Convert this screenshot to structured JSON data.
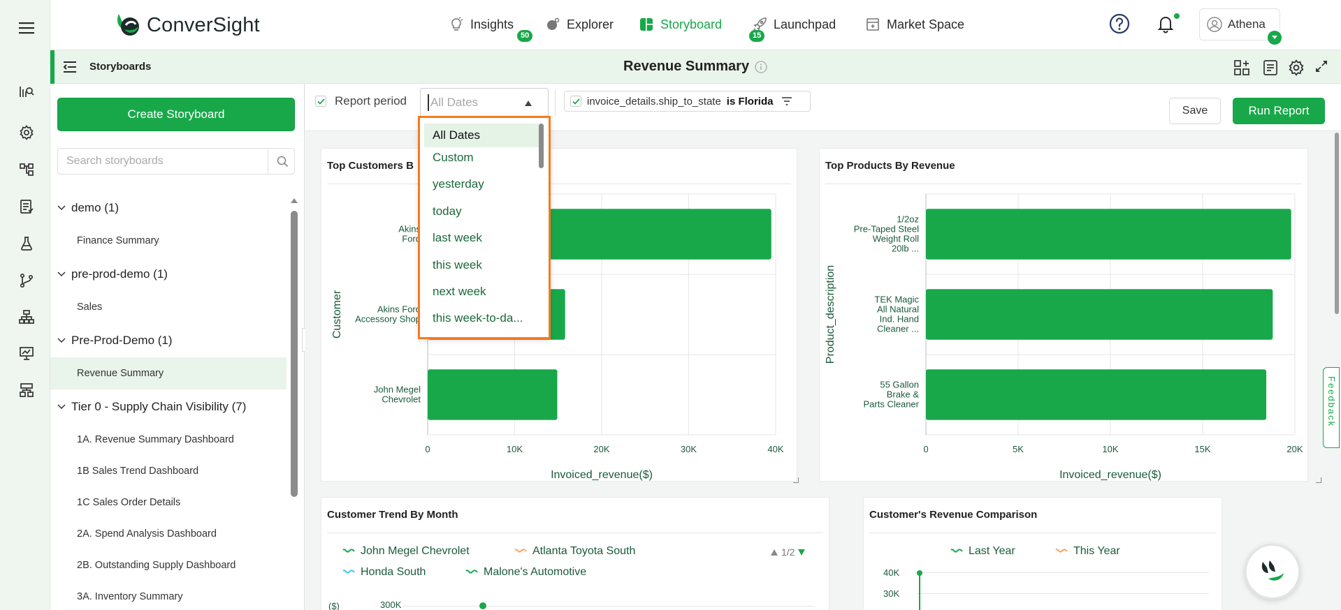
{
  "app": {
    "logo_text": "ConverSight",
    "brand_color": "#18a84a",
    "highlight_color": "#f47b20"
  },
  "nav": {
    "items": [
      {
        "label": "Insights",
        "badge": "50",
        "icon": "insights-icon"
      },
      {
        "label": "Explorer",
        "icon": "explorer-icon"
      },
      {
        "label": "Storyboard",
        "badge": "15",
        "icon": "storyboard-icon",
        "active": true
      },
      {
        "label": "Launchpad",
        "icon": "launchpad-icon"
      },
      {
        "label": "Market Space",
        "icon": "market-space-icon"
      }
    ],
    "user_name": "Athena"
  },
  "subheader": {
    "section_label": "Storyboards",
    "page_title": "Revenue Summary"
  },
  "sidebar": {
    "create_button": "Create Storyboard",
    "search_placeholder": "Search storyboards",
    "groups": [
      {
        "label": "demo (1)",
        "items": [
          "Finance Summary"
        ]
      },
      {
        "label": "pre-prod-demo (1)",
        "items": [
          "Sales"
        ]
      },
      {
        "label": "Pre-Prod-Demo (1)",
        "items": [
          "Revenue Summary"
        ]
      },
      {
        "label": "Tier 0 - Supply Chain Visibility (7)",
        "items": [
          "1A. Revenue Summary Dashboard",
          "1B Sales Trend Dashboard",
          "1C Sales Order Details",
          "2A. Spend Analysis Dashboard",
          "2B. Outstanding Supply Dashboard",
          "3A. Inventory Summary"
        ]
      }
    ],
    "selected_item": "Revenue Summary"
  },
  "filters": {
    "report_period_label": "Report period",
    "period_placeholder": "All Dates",
    "filter_field": "invoice_details.ship_to_state",
    "filter_value": "is Florida",
    "save_label": "Save",
    "run_label": "Run Report"
  },
  "dropdown": {
    "options": [
      "All Dates",
      "Custom",
      "yesterday",
      "today",
      "last week",
      "this week",
      "next week",
      "this week-to-da..."
    ],
    "selected": "All Dates"
  },
  "cards": {
    "top_customers": {
      "title": "Top Customers B",
      "ylabel": "Customer",
      "xlabel": "Invoiced_revenue($)"
    },
    "top_products": {
      "title": "Top Products By Revenue",
      "ylabel": "Product_description",
      "xlabel": "Invoiced_revenue($)"
    },
    "customer_trend": {
      "title": "Customer Trend By Month",
      "legend": [
        "John Megel Chevrolet",
        "Atlanta Toyota South",
        "Honda South",
        "Malone's Automotive"
      ],
      "legend_colors": [
        "#18a84a",
        "#f5a46a",
        "#3ec6e8",
        "#18a84a"
      ],
      "page_indicator": "1/2",
      "ylabel": "($)",
      "ytick_first": "300K"
    },
    "revenue_comparison": {
      "title": "Customer's Revenue Comparison",
      "legend": [
        "Last Year",
        "This Year"
      ],
      "legend_colors": [
        "#18a84a",
        "#f5a46a"
      ],
      "ticks": [
        "40K",
        "30K"
      ]
    }
  },
  "chart_data": [
    {
      "type": "bar",
      "orientation": "horizontal",
      "title": "Top Customers B",
      "categories": [
        [
          "Akins",
          "Ford"
        ],
        [
          "Akins Ford",
          "Accessory Shop"
        ],
        [
          "John Megel",
          "Chevrolet"
        ]
      ],
      "values": [
        39500,
        15800,
        14900
      ],
      "xticks": [
        "0",
        "10K",
        "20K",
        "30K",
        "40K"
      ],
      "xlim": [
        0,
        40000
      ],
      "xlabel": "Invoiced_revenue($)",
      "ylabel": "Customer",
      "grid": true
    },
    {
      "type": "bar",
      "orientation": "horizontal",
      "title": "Top Products By Revenue",
      "categories": [
        [
          "1/2oz",
          "Pre-Taped Steel",
          "Weight Roll",
          "20lb ..."
        ],
        [
          "TEK Magic",
          "All Natural",
          "Ind. Hand",
          "Cleaner ..."
        ],
        [
          "55 Gallon",
          "Brake &",
          "Parts Cleaner"
        ]
      ],
      "values": [
        19800,
        18800,
        18450
      ],
      "xticks": [
        "0",
        "5K",
        "10K",
        "15K",
        "20K"
      ],
      "xlim": [
        0,
        20000
      ],
      "xlabel": "Invoiced_revenue($)",
      "ylabel": "Product_description",
      "grid": true
    }
  ],
  "misc": {
    "feedback_label": "Feedback"
  }
}
